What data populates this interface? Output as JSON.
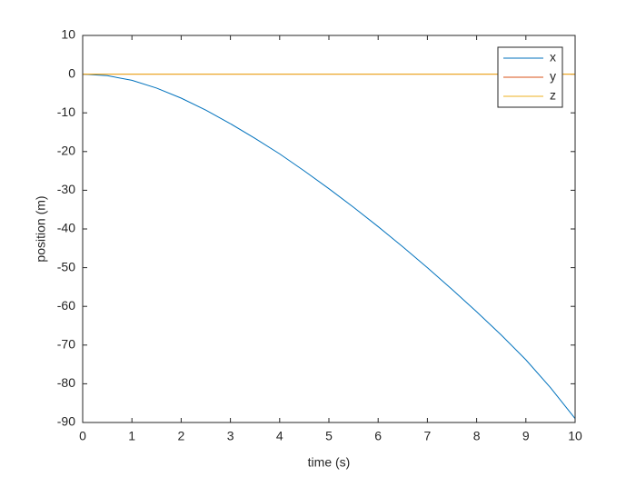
{
  "chart_data": {
    "type": "line",
    "xlabel": "time (s)",
    "ylabel": "position (m)",
    "x": [
      0,
      0.5,
      1,
      1.5,
      2,
      2.5,
      3,
      3.5,
      4,
      4.5,
      5,
      5.5,
      6,
      6.5,
      7,
      7.5,
      8,
      8.5,
      9,
      9.5,
      10
    ],
    "series": [
      {
        "name": "x",
        "color": "#0072BD",
        "values": [
          0,
          -0.4,
          -1.6,
          -3.6,
          -6.2,
          -9.3,
          -12.8,
          -16.6,
          -20.6,
          -25,
          -29.6,
          -34.4,
          -39.4,
          -44.6,
          -50,
          -55.6,
          -61.4,
          -67.4,
          -73.8,
          -81,
          -89
        ]
      },
      {
        "name": "y",
        "color": "#D95319",
        "values": [
          0,
          0,
          0,
          0,
          0,
          0,
          0,
          0,
          0,
          0,
          0,
          0,
          0,
          0,
          0,
          0,
          0,
          0,
          0,
          0,
          0
        ]
      },
      {
        "name": "z",
        "color": "#EDB120",
        "values": [
          0,
          0,
          0,
          0,
          0,
          0,
          0,
          0,
          0,
          0,
          0,
          0,
          0,
          0,
          0,
          0,
          0,
          0,
          0,
          0,
          0
        ]
      }
    ],
    "xlim": [
      0,
      10
    ],
    "xticks": [
      0,
      1,
      2,
      3,
      4,
      5,
      6,
      7,
      8,
      9,
      10
    ],
    "ylim": [
      -90,
      10
    ],
    "yticks": [
      -90,
      -80,
      -70,
      -60,
      -50,
      -40,
      -30,
      -20,
      -10,
      0,
      10
    ],
    "grid": false,
    "legend": "northeast"
  }
}
